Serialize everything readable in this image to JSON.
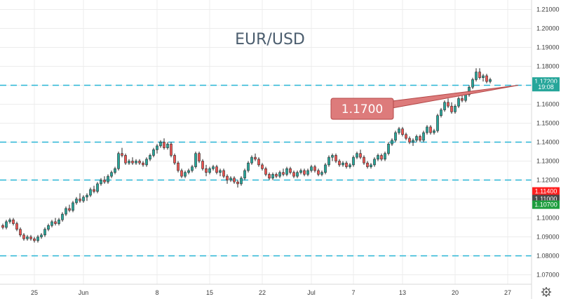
{
  "chart_data": {
    "type": "candlestick",
    "title": "EUR/USD",
    "ylim": [
      1.065,
      1.215
    ],
    "y_ticks": [
      1.07,
      1.08,
      1.09,
      1.1,
      1.11,
      1.12,
      1.13,
      1.14,
      1.15,
      1.16,
      1.17,
      1.18,
      1.19,
      1.2,
      1.21
    ],
    "x_ticks": [
      {
        "label": "25",
        "index": 9
      },
      {
        "label": "Jun",
        "index": 23
      },
      {
        "label": "8",
        "index": 44
      },
      {
        "label": "15",
        "index": 59
      },
      {
        "label": "22",
        "index": 74
      },
      {
        "label": "Jul",
        "index": 88
      },
      {
        "label": "7",
        "index": 100
      },
      {
        "label": "13",
        "index": 114
      },
      {
        "label": "20",
        "index": 129
      },
      {
        "label": "27",
        "index": 144
      }
    ],
    "horizontal_levels": [
      1.08,
      1.12,
      1.14,
      1.17
    ],
    "callout": {
      "label": "1.1700",
      "anchor_index": 147,
      "anchor_value": 1.17
    },
    "price_badges": [
      {
        "label": "1.17200",
        "value": 1.172,
        "color": "#26a69a"
      },
      {
        "label": "19:08",
        "value": 1.169,
        "color": "#26a69a"
      },
      {
        "label": "1.11400",
        "value": 1.114,
        "color": "#ff1e1e"
      },
      {
        "label": "1.11000",
        "value": 1.11,
        "color": "#4a4a4a"
      },
      {
        "label": "1.10700",
        "value": 1.107,
        "color": "#1e9e3e"
      }
    ],
    "colors": {
      "up": "#26a69a",
      "down": "#ef5350",
      "wick": "#262626",
      "level": "#29b6d6",
      "grid": "#ececec",
      "callout_fill": "#dd7b7b",
      "callout_stroke": "#b34747"
    },
    "series": [
      {
        "values": [
          [
            1.096,
            1.097,
            1.094,
            1.095
          ],
          [
            1.095,
            1.099,
            1.094,
            1.098
          ],
          [
            1.098,
            1.1,
            1.097,
            1.099
          ],
          [
            1.099,
            1.1,
            1.096,
            1.097
          ],
          [
            1.097,
            1.098,
            1.093,
            1.094
          ],
          [
            1.094,
            1.095,
            1.09,
            1.091
          ],
          [
            1.091,
            1.092,
            1.088,
            1.089
          ],
          [
            1.089,
            1.091,
            1.088,
            1.09
          ],
          [
            1.09,
            1.091,
            1.088,
            1.089
          ],
          [
            1.089,
            1.09,
            1.087,
            1.088
          ],
          [
            1.088,
            1.091,
            1.087,
            1.09
          ],
          [
            1.09,
            1.092,
            1.089,
            1.091
          ],
          [
            1.091,
            1.095,
            1.09,
            1.094
          ],
          [
            1.094,
            1.097,
            1.093,
            1.096
          ],
          [
            1.096,
            1.099,
            1.095,
            1.098
          ],
          [
            1.098,
            1.1,
            1.096,
            1.097
          ],
          [
            1.097,
            1.1,
            1.096,
            1.099
          ],
          [
            1.099,
            1.103,
            1.098,
            1.102
          ],
          [
            1.102,
            1.106,
            1.101,
            1.105
          ],
          [
            1.105,
            1.107,
            1.103,
            1.104
          ],
          [
            1.104,
            1.109,
            1.103,
            1.108
          ],
          [
            1.108,
            1.111,
            1.107,
            1.11
          ],
          [
            1.11,
            1.113,
            1.108,
            1.109
          ],
          [
            1.109,
            1.112,
            1.108,
            1.111
          ],
          [
            1.111,
            1.113,
            1.109,
            1.112
          ],
          [
            1.112,
            1.116,
            1.111,
            1.115
          ],
          [
            1.115,
            1.117,
            1.113,
            1.114
          ],
          [
            1.114,
            1.119,
            1.113,
            1.118
          ],
          [
            1.118,
            1.121,
            1.117,
            1.12
          ],
          [
            1.12,
            1.122,
            1.118,
            1.119
          ],
          [
            1.119,
            1.123,
            1.118,
            1.122
          ],
          [
            1.122,
            1.125,
            1.121,
            1.124
          ],
          [
            1.124,
            1.127,
            1.123,
            1.126
          ],
          [
            1.126,
            1.135,
            1.125,
            1.134
          ],
          [
            1.134,
            1.137,
            1.132,
            1.133
          ],
          [
            1.133,
            1.134,
            1.128,
            1.129
          ],
          [
            1.129,
            1.131,
            1.128,
            1.13
          ],
          [
            1.13,
            1.132,
            1.128,
            1.129
          ],
          [
            1.129,
            1.131,
            1.128,
            1.13
          ],
          [
            1.13,
            1.131,
            1.128,
            1.129
          ],
          [
            1.129,
            1.13,
            1.127,
            1.128
          ],
          [
            1.128,
            1.132,
            1.127,
            1.131
          ],
          [
            1.131,
            1.134,
            1.13,
            1.133
          ],
          [
            1.133,
            1.137,
            1.132,
            1.136
          ],
          [
            1.136,
            1.139,
            1.134,
            1.138
          ],
          [
            1.138,
            1.141,
            1.137,
            1.14
          ],
          [
            1.14,
            1.142,
            1.136,
            1.137
          ],
          [
            1.137,
            1.14,
            1.136,
            1.139
          ],
          [
            1.139,
            1.14,
            1.132,
            1.133
          ],
          [
            1.133,
            1.134,
            1.128,
            1.129
          ],
          [
            1.129,
            1.13,
            1.124,
            1.125
          ],
          [
            1.125,
            1.126,
            1.121,
            1.122
          ],
          [
            1.122,
            1.125,
            1.121,
            1.124
          ],
          [
            1.124,
            1.126,
            1.123,
            1.125
          ],
          [
            1.125,
            1.128,
            1.124,
            1.127
          ],
          [
            1.127,
            1.135,
            1.126,
            1.134
          ],
          [
            1.134,
            1.135,
            1.129,
            1.13
          ],
          [
            1.13,
            1.131,
            1.125,
            1.126
          ],
          [
            1.126,
            1.128,
            1.122,
            1.124
          ],
          [
            1.124,
            1.127,
            1.123,
            1.126
          ],
          [
            1.126,
            1.128,
            1.125,
            1.127
          ],
          [
            1.127,
            1.128,
            1.123,
            1.124
          ],
          [
            1.124,
            1.126,
            1.122,
            1.125
          ],
          [
            1.125,
            1.126,
            1.121,
            1.122
          ],
          [
            1.122,
            1.123,
            1.118,
            1.12
          ],
          [
            1.12,
            1.122,
            1.119,
            1.121
          ],
          [
            1.121,
            1.122,
            1.118,
            1.119
          ],
          [
            1.119,
            1.12,
            1.116,
            1.118
          ],
          [
            1.118,
            1.122,
            1.117,
            1.121
          ],
          [
            1.121,
            1.126,
            1.12,
            1.125
          ],
          [
            1.125,
            1.13,
            1.124,
            1.129
          ],
          [
            1.129,
            1.133,
            1.128,
            1.132
          ],
          [
            1.132,
            1.134,
            1.13,
            1.131
          ],
          [
            1.131,
            1.132,
            1.127,
            1.128
          ],
          [
            1.128,
            1.129,
            1.125,
            1.126
          ],
          [
            1.126,
            1.127,
            1.122,
            1.123
          ],
          [
            1.123,
            1.124,
            1.12,
            1.121
          ],
          [
            1.121,
            1.124,
            1.12,
            1.123
          ],
          [
            1.123,
            1.124,
            1.121,
            1.122
          ],
          [
            1.122,
            1.125,
            1.121,
            1.124
          ],
          [
            1.124,
            1.126,
            1.122,
            1.123
          ],
          [
            1.123,
            1.127,
            1.122,
            1.126
          ],
          [
            1.126,
            1.127,
            1.123,
            1.124
          ],
          [
            1.124,
            1.125,
            1.121,
            1.122
          ],
          [
            1.122,
            1.125,
            1.121,
            1.124
          ],
          [
            1.124,
            1.126,
            1.123,
            1.125
          ],
          [
            1.125,
            1.126,
            1.122,
            1.123
          ],
          [
            1.123,
            1.126,
            1.122,
            1.125
          ],
          [
            1.125,
            1.128,
            1.124,
            1.127
          ],
          [
            1.127,
            1.128,
            1.124,
            1.125
          ],
          [
            1.125,
            1.126,
            1.122,
            1.123
          ],
          [
            1.123,
            1.125,
            1.122,
            1.124
          ],
          [
            1.124,
            1.129,
            1.123,
            1.128
          ],
          [
            1.128,
            1.133,
            1.127,
            1.132
          ],
          [
            1.132,
            1.134,
            1.13,
            1.133
          ],
          [
            1.133,
            1.134,
            1.129,
            1.13
          ],
          [
            1.13,
            1.131,
            1.127,
            1.128
          ],
          [
            1.128,
            1.13,
            1.127,
            1.129
          ],
          [
            1.129,
            1.13,
            1.126,
            1.127
          ],
          [
            1.127,
            1.129,
            1.126,
            1.128
          ],
          [
            1.128,
            1.133,
            1.127,
            1.132
          ],
          [
            1.132,
            1.135,
            1.131,
            1.134
          ],
          [
            1.134,
            1.136,
            1.131,
            1.132
          ],
          [
            1.132,
            1.133,
            1.128,
            1.129
          ],
          [
            1.129,
            1.13,
            1.126,
            1.127
          ],
          [
            1.127,
            1.129,
            1.126,
            1.128
          ],
          [
            1.128,
            1.132,
            1.127,
            1.131
          ],
          [
            1.131,
            1.134,
            1.13,
            1.133
          ],
          [
            1.133,
            1.134,
            1.13,
            1.131
          ],
          [
            1.131,
            1.135,
            1.13,
            1.134
          ],
          [
            1.134,
            1.14,
            1.133,
            1.139
          ],
          [
            1.139,
            1.142,
            1.138,
            1.141
          ],
          [
            1.141,
            1.146,
            1.14,
            1.145
          ],
          [
            1.145,
            1.148,
            1.144,
            1.147
          ],
          [
            1.147,
            1.148,
            1.143,
            1.144
          ],
          [
            1.144,
            1.145,
            1.141,
            1.142
          ],
          [
            1.142,
            1.143,
            1.139,
            1.14
          ],
          [
            1.14,
            1.142,
            1.138,
            1.141
          ],
          [
            1.141,
            1.144,
            1.14,
            1.143
          ],
          [
            1.143,
            1.144,
            1.14,
            1.141
          ],
          [
            1.141,
            1.146,
            1.14,
            1.145
          ],
          [
            1.145,
            1.149,
            1.144,
            1.148
          ],
          [
            1.148,
            1.149,
            1.144,
            1.145
          ],
          [
            1.145,
            1.147,
            1.144,
            1.146
          ],
          [
            1.146,
            1.155,
            1.145,
            1.154
          ],
          [
            1.154,
            1.158,
            1.153,
            1.157
          ],
          [
            1.157,
            1.162,
            1.156,
            1.161
          ],
          [
            1.161,
            1.163,
            1.158,
            1.159
          ],
          [
            1.159,
            1.161,
            1.155,
            1.156
          ],
          [
            1.156,
            1.16,
            1.155,
            1.159
          ],
          [
            1.159,
            1.164,
            1.158,
            1.163
          ],
          [
            1.163,
            1.165,
            1.161,
            1.162
          ],
          [
            1.162,
            1.166,
            1.161,
            1.165
          ],
          [
            1.165,
            1.17,
            1.164,
            1.169
          ],
          [
            1.169,
            1.174,
            1.168,
            1.173
          ],
          [
            1.173,
            1.179,
            1.172,
            1.177
          ],
          [
            1.177,
            1.179,
            1.173,
            1.174
          ],
          [
            1.174,
            1.176,
            1.172,
            1.175
          ],
          [
            1.175,
            1.176,
            1.171,
            1.172
          ],
          [
            1.172,
            1.174,
            1.171,
            1.173
          ]
        ]
      }
    ]
  }
}
